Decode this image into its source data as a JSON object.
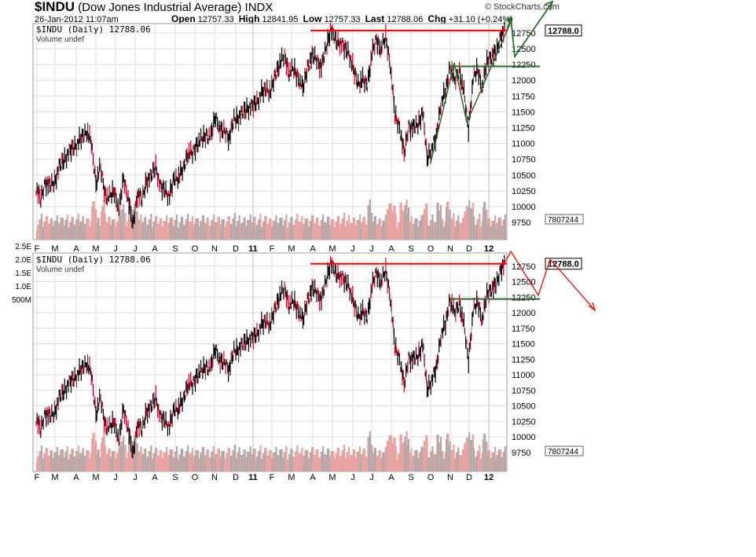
{
  "header": {
    "symbol": "$INDU",
    "name": "(Dow Jones Industrial Average)",
    "exchange": "INDX",
    "datetime": "26-Jan-2012 11:07am",
    "open_label": "Open",
    "open": "12757.33",
    "high_label": "High",
    "high": "12841.95",
    "low_label": "Low",
    "low": "12757.33",
    "last_label": "Last",
    "last": "12788.06",
    "chg_label": "Chg",
    "chg": "+31.10 (+0.24%)",
    "copyright": "© StockCharts.com"
  },
  "panels": [
    {
      "legend": "$INDU (Daily) 12788.06",
      "volume_legend": "Volume undef",
      "last_price_tag": "12788.0",
      "volume_tag": "7807244"
    },
    {
      "legend": "$INDU (Daily) 12788.06",
      "volume_legend": "Volume undef",
      "last_price_tag": "12788.0",
      "volume_tag": "7807244"
    }
  ],
  "left_volume_labels": [
    "2.5E",
    "2.0E",
    "1.5E",
    "1.0E",
    "500M"
  ],
  "chart_data": {
    "type": "line",
    "title": "$INDU (Dow Jones Industrial Average) INDX",
    "frequency": "weekly approx",
    "x_start": "2010-02",
    "x_ticks": [
      "F",
      "M",
      "A",
      "M",
      "J",
      "J",
      "A",
      "S",
      "O",
      "N",
      "D",
      "11",
      "F",
      "M",
      "A",
      "M",
      "J",
      "J",
      "A",
      "S",
      "O",
      "N",
      "D",
      "12"
    ],
    "y_ticks": [
      9750,
      10000,
      10250,
      10500,
      10750,
      11000,
      11250,
      11500,
      11750,
      12000,
      12250,
      12500,
      12750
    ],
    "ylim": [
      9650,
      12850
    ],
    "values": [
      10300,
      10100,
      10400,
      10320,
      10400,
      10620,
      10740,
      10850,
      10930,
      11000,
      11100,
      11200,
      11000,
      10380,
      10620,
      10190,
      10150,
      10250,
      9930,
      10450,
      10140,
      9690,
      10200,
      10100,
      10420,
      10470,
      10650,
      10300,
      10270,
      10150,
      10450,
      10460,
      10600,
      10860,
      10830,
      11000,
      11060,
      11130,
      11110,
      11440,
      11190,
      11200,
      11090,
      11380,
      11410,
      11490,
      11570,
      11580,
      11670,
      11790,
      11870,
      11820,
      12090,
      12270,
      12390,
      12130,
      12170,
      12040,
      11860,
      12220,
      12380,
      12340,
      12200,
      12500,
      12810,
      12640,
      12600,
      12510,
      12440,
      12150,
      11950,
      12000,
      11930,
      12410,
      12650,
      12480,
      12680,
      12240,
      11440,
      11270,
      10820,
      11280,
      11240,
      11300,
      11510,
      10770,
      10910,
      11100,
      11640,
      11810,
      12230,
      11980,
      12150,
      11800,
      11230,
      12020,
      12180,
      11870,
      12290,
      12390,
      12420,
      12720,
      12788
    ],
    "annotations": {
      "resistance": 12788,
      "support": 12220,
      "resistance_color": "#ff0000",
      "support_color": "#2e6b2e",
      "projection_top_color": "#2e6b2e",
      "projection_bottom_color": "#ff0000"
    }
  }
}
